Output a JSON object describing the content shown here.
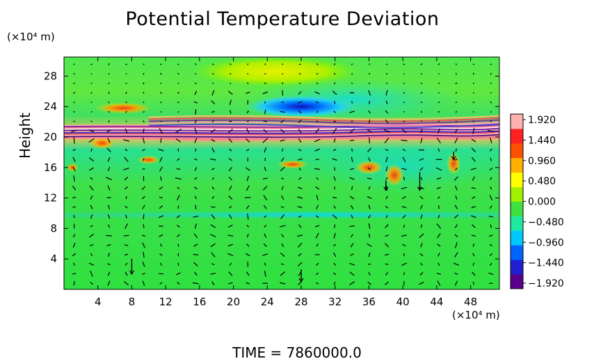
{
  "chart_data": {
    "type": "heatmap",
    "title": "Potential Temperature Deviation",
    "ylabel": "Height",
    "x_unit": "(×10⁴ m)",
    "y_unit": "(×10⁴ m)",
    "x_ticks": [
      4,
      8,
      12,
      16,
      20,
      24,
      28,
      32,
      36,
      40,
      44,
      48
    ],
    "y_ticks": [
      4,
      8,
      12,
      16,
      20,
      24,
      28
    ],
    "xlim": [
      0,
      51.4
    ],
    "ylim": [
      0,
      30.5
    ],
    "colorbar": {
      "range": [
        -1.92,
        1.92
      ],
      "labels": [
        "1.920",
        "1.440",
        "0.960",
        "0.480",
        "0.000",
        "−0.480",
        "−0.960",
        "−1.440",
        "−1.920"
      ],
      "colors": [
        "#5a008c",
        "#2020d0",
        "#0064ff",
        "#00c8ff",
        "#20e8a0",
        "#40e040",
        "#a0f000",
        "#ffff00",
        "#ffb000",
        "#ff5000",
        "#ff2020",
        "#ffb0b0"
      ]
    },
    "features": [
      {
        "kind": "band",
        "y_range": [
          19.8,
          21.4
        ],
        "colors": "alternating magenta/purple/pink",
        "note_value": "strong"
      },
      {
        "kind": "patch",
        "center": [
          28,
          24
        ],
        "value": -1.4
      },
      {
        "kind": "patch",
        "center": [
          26,
          28.5
        ],
        "value": 0.6
      },
      {
        "kind": "patch",
        "center": [
          4.5,
          19.2
        ],
        "value": 1.4
      }
    ]
  },
  "footer": {
    "time_label": "TIME  =  7860000.0"
  }
}
